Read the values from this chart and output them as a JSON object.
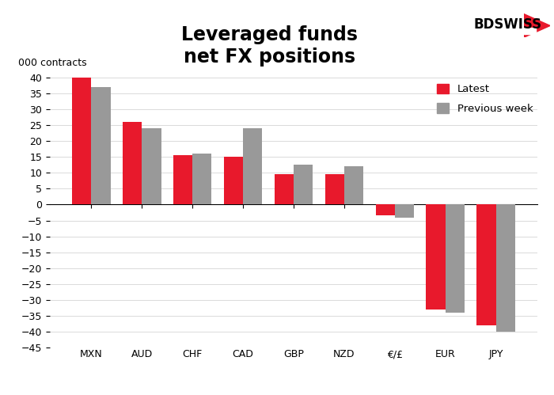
{
  "title": "Leveraged funds\nnet FX positions",
  "ylabel": "000 contracts",
  "categories": [
    "MXN",
    "AUD",
    "CHF",
    "CAD",
    "GBP",
    "NZD",
    "€/£",
    "EUR",
    "JPY"
  ],
  "latest": [
    40,
    26,
    15.5,
    15,
    9.5,
    9.5,
    -3.5,
    -33,
    -38
  ],
  "previous_week": [
    37,
    24,
    16,
    24,
    12.5,
    12,
    -4,
    -34,
    -40
  ],
  "latest_color": "#e8192c",
  "prev_color": "#999999",
  "ylim": [
    -45,
    42
  ],
  "yticks": [
    -45,
    -40,
    -35,
    -30,
    -25,
    -20,
    -15,
    -10,
    -5,
    0,
    5,
    10,
    15,
    20,
    25,
    30,
    35,
    40
  ],
  "legend_latest": "Latest",
  "legend_prev": "Previous week",
  "background_color": "#ffffff",
  "title_fontsize": 17,
  "tick_fontsize": 9
}
